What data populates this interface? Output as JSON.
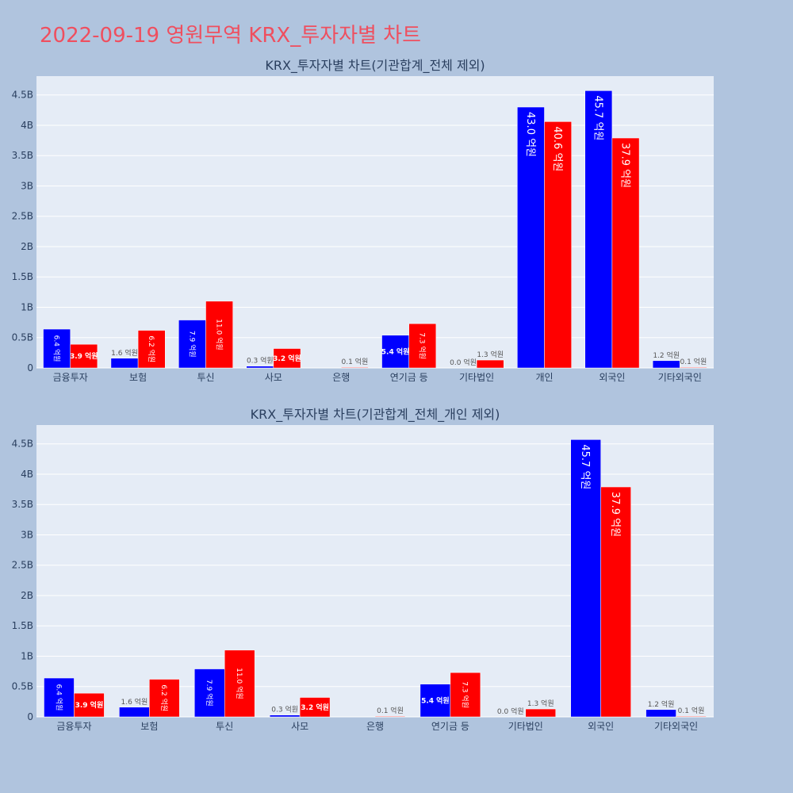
{
  "page_title": "2022-09-19 영원무역 KRX_투자자별 차트",
  "colors": {
    "buy": "#0000ff",
    "sell": "#ff0000",
    "plot_bg": "#e5ecf6",
    "page_bg": "#b0c4de",
    "title": "#ef4f5f"
  },
  "chart_data": [
    {
      "type": "bar",
      "title": "KRX_투자자별 차트(기관합계_전체 제외)",
      "categories": [
        "금융투자",
        "보험",
        "투신",
        "사모",
        "은행",
        "연기금 등",
        "기타법인",
        "개인",
        "외국인",
        "기타외국인"
      ],
      "series": [
        {
          "color": "#0000ff",
          "values": [
            0.64,
            0.16,
            0.79,
            0.03,
            0.0,
            0.54,
            0.0,
            4.3,
            4.57,
            0.12
          ],
          "labels": [
            "6.4 억원",
            "1.6 억원",
            "7.9 억원",
            "0.3 억원",
            "",
            "5.4 억원",
            "0.0 억원",
            "43.0 억원",
            "45.7 억원",
            "1.2 억원"
          ]
        },
        {
          "color": "#ff0000",
          "values": [
            0.39,
            0.62,
            1.1,
            0.32,
            0.01,
            0.73,
            0.13,
            4.06,
            3.79,
            0.01
          ],
          "labels": [
            "3.9 억원",
            "6.2 억원",
            "11.0 억원",
            "3.2 억원",
            "0.1 억원",
            "7.3 억원",
            "1.3 억원",
            "40.6 억원",
            "37.9 억원",
            "0.1 억원"
          ]
        }
      ],
      "y_ticks": [
        0,
        0.5,
        1,
        1.5,
        2,
        2.5,
        3,
        3.5,
        4,
        4.5
      ],
      "y_tick_labels": [
        "0",
        "0.5B",
        "1B",
        "1.5B",
        "2B",
        "2.5B",
        "3B",
        "3.5B",
        "4B",
        "4.5B"
      ],
      "ylim": [
        0,
        4.81
      ],
      "grid": true
    },
    {
      "type": "bar",
      "title": "KRX_투자자별 차트(기관합계_전체_개인 제외)",
      "categories": [
        "금융투자",
        "보험",
        "투신",
        "사모",
        "은행",
        "연기금 등",
        "기타법인",
        "외국인",
        "기타외국인"
      ],
      "series": [
        {
          "color": "#0000ff",
          "values": [
            0.64,
            0.16,
            0.79,
            0.03,
            0.0,
            0.54,
            0.0,
            4.57,
            0.12
          ],
          "labels": [
            "6.4 억원",
            "1.6 억원",
            "7.9 억원",
            "0.3 억원",
            "",
            "5.4 억원",
            "0.0 억원",
            "45.7 억원",
            "1.2 억원"
          ]
        },
        {
          "color": "#ff0000",
          "values": [
            0.39,
            0.62,
            1.1,
            0.32,
            0.01,
            0.73,
            0.13,
            3.79,
            0.01
          ],
          "labels": [
            "3.9 억원",
            "6.2 억원",
            "11.0 억원",
            "3.2 억원",
            "0.1 억원",
            "7.3 억원",
            "1.3 억원",
            "37.9 억원",
            "0.1 억원"
          ]
        }
      ],
      "y_ticks": [
        0,
        0.5,
        1,
        1.5,
        2,
        2.5,
        3,
        3.5,
        4,
        4.5
      ],
      "y_tick_labels": [
        "0",
        "0.5B",
        "1B",
        "1.5B",
        "2B",
        "2.5B",
        "3B",
        "3.5B",
        "4B",
        "4.5B"
      ],
      "ylim": [
        0,
        4.81
      ],
      "grid": true
    }
  ]
}
